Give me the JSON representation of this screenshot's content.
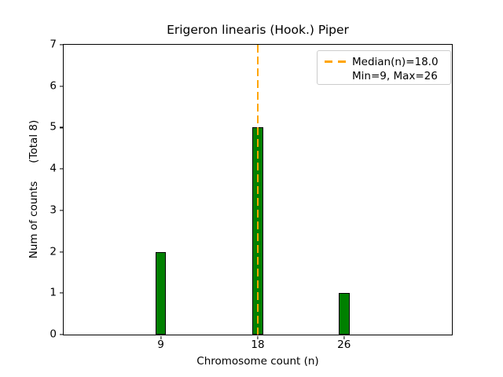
{
  "chart_data": {
    "type": "bar",
    "title": "Erigeron linearis (Hook.) Piper",
    "xlabel": "Chromosome count (n)",
    "ylabel": "Num of counts",
    "ylabel_annotation": "(Total 8)",
    "categories": [
      9,
      18,
      26
    ],
    "values": [
      2,
      5,
      1
    ],
    "total_counts": 8,
    "bar_width_data_units": 1,
    "xlim": [
      0,
      36
    ],
    "ylim": [
      0,
      7
    ],
    "xticks": [
      9,
      18,
      26
    ],
    "yticks": [
      0,
      1,
      2,
      3,
      4,
      5,
      6,
      7
    ],
    "grid": false,
    "median_line": {
      "x": 18,
      "style": "dashed",
      "color": "#FFA500"
    },
    "legend": {
      "position": "upper right",
      "entries": [
        {
          "label": "Median(n)=18.0",
          "handle": "dashed-line",
          "color": "#FFA500"
        },
        {
          "label": "Min=9, Max=26",
          "handle": "none"
        }
      ]
    },
    "colors": {
      "bar_fill": "#008000",
      "bar_edge": "#000000",
      "median_line": "#FFA500",
      "text": "#000000",
      "background": "#ffffff",
      "legend_border": "#cccccc"
    }
  }
}
